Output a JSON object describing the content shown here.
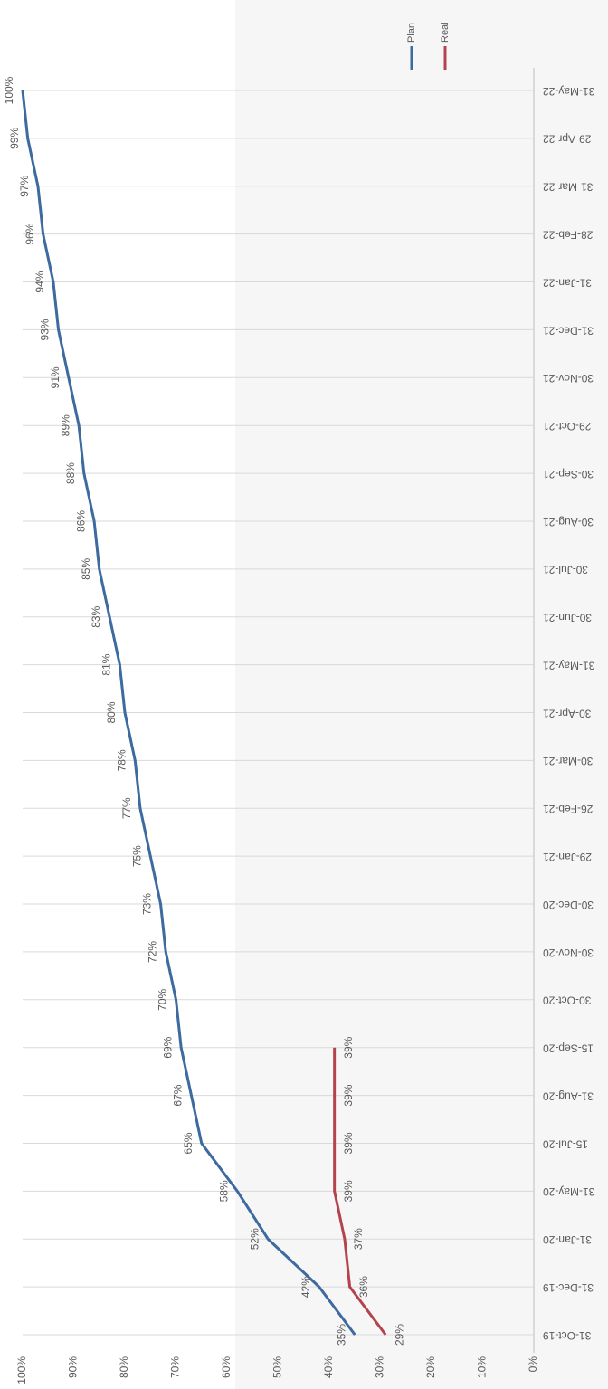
{
  "chart_data": {
    "type": "line",
    "categories": [
      "31-Oct-19",
      "31-Dec-19",
      "31-Jan-20",
      "31-May-20",
      "15-Jul-20",
      "31-Aug-20",
      "15-Sep-20",
      "30-Oct-20",
      "30-Nov-20",
      "30-Dec-20",
      "29-Jan-21",
      "26-Feb-21",
      "30-Mar-21",
      "30-Apr-21",
      "31-May-21",
      "30-Jun-21",
      "30-Jul-21",
      "30-Aug-21",
      "30-Sep-21",
      "29-Oct-21",
      "30-Nov-21",
      "31-Dec-21",
      "31-Jan-22",
      "28-Feb-22",
      "31-Mar-22",
      "29-Apr-22",
      "31-May-22"
    ],
    "series": [
      {
        "name": "Plan",
        "color": "#3d6a9f",
        "values": [
          35,
          42,
          52,
          58,
          65,
          67,
          69,
          70,
          72,
          73,
          75,
          77,
          78,
          80,
          81,
          83,
          85,
          86,
          88,
          89,
          91,
          93,
          94,
          96,
          97,
          99,
          100
        ],
        "value_labels": [
          "35%",
          "42%",
          "52%",
          "58%",
          "65%",
          "67%",
          "69%",
          "70%",
          "72%",
          "73%",
          "75%",
          "77%",
          "78%",
          "80%",
          "81%",
          "83%",
          "85%",
          "86%",
          "88%",
          "89%",
          "91%",
          "93%",
          "94%",
          "96%",
          "97%",
          "99%",
          "100%"
        ]
      },
      {
        "name": "Real",
        "color": "#b4434c",
        "values": [
          29,
          36,
          37,
          39,
          39,
          39,
          39,
          null,
          null,
          null,
          null,
          null,
          null,
          null,
          null,
          null,
          null,
          null,
          null,
          null,
          null,
          null,
          null,
          null,
          null,
          null,
          null
        ],
        "value_labels": [
          "29%",
          "36%",
          "37%",
          "39%",
          "39%",
          "39%",
          "39%",
          null,
          null,
          null,
          null,
          null,
          null,
          null,
          null,
          null,
          null,
          null,
          null,
          null,
          null,
          null,
          null,
          null,
          null,
          null,
          null
        ]
      }
    ],
    "ylim": [
      0,
      100
    ],
    "yticks": [
      {
        "value": 0,
        "label": "0%"
      },
      {
        "value": 10,
        "label": "10%"
      },
      {
        "value": 20,
        "label": "20%"
      },
      {
        "value": 30,
        "label": "30%"
      },
      {
        "value": 40,
        "label": "40%"
      },
      {
        "value": 50,
        "label": "50%"
      },
      {
        "value": 60,
        "label": "60%"
      },
      {
        "value": 70,
        "label": "70%"
      },
      {
        "value": 80,
        "label": "80%"
      },
      {
        "value": 90,
        "label": "90%"
      },
      {
        "value": 100,
        "label": "100%"
      }
    ],
    "legend": "right"
  }
}
